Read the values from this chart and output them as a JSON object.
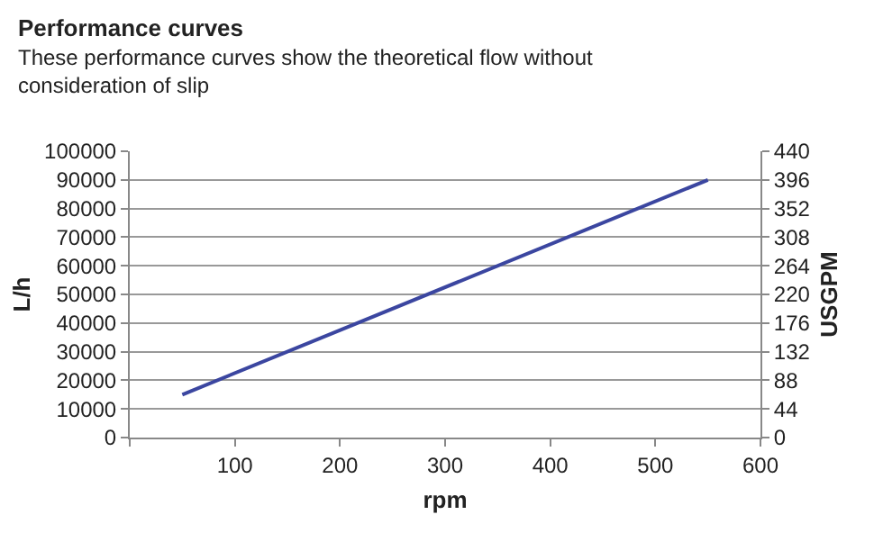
{
  "chart_data": {
    "type": "line",
    "title": "Performance curves",
    "subtitle": "These performance curves show the theoretical flow without\nconsideration of slip",
    "xlabel": "rpm",
    "ylabel": "L/h",
    "y2label": "USGPM",
    "x": [
      50,
      550
    ],
    "series": [
      {
        "color": "#3b46a0",
        "values": [
          15000,
          90000
        ]
      }
    ],
    "xlim": [
      0,
      600
    ],
    "xticks": [
      {
        "value": 0,
        "label": null
      },
      100,
      200,
      300,
      400,
      500,
      600
    ],
    "ylim": [
      0,
      100000
    ],
    "yticks": [
      0,
      10000,
      20000,
      30000,
      40000,
      50000,
      60000,
      70000,
      80000,
      90000,
      100000
    ],
    "y2lim": [
      0,
      440
    ],
    "y2ticks": [
      0,
      44,
      88,
      132,
      176,
      220,
      264,
      308,
      352,
      396,
      440
    ],
    "grid": "y",
    "marker": "none",
    "line_style": "solid"
  }
}
